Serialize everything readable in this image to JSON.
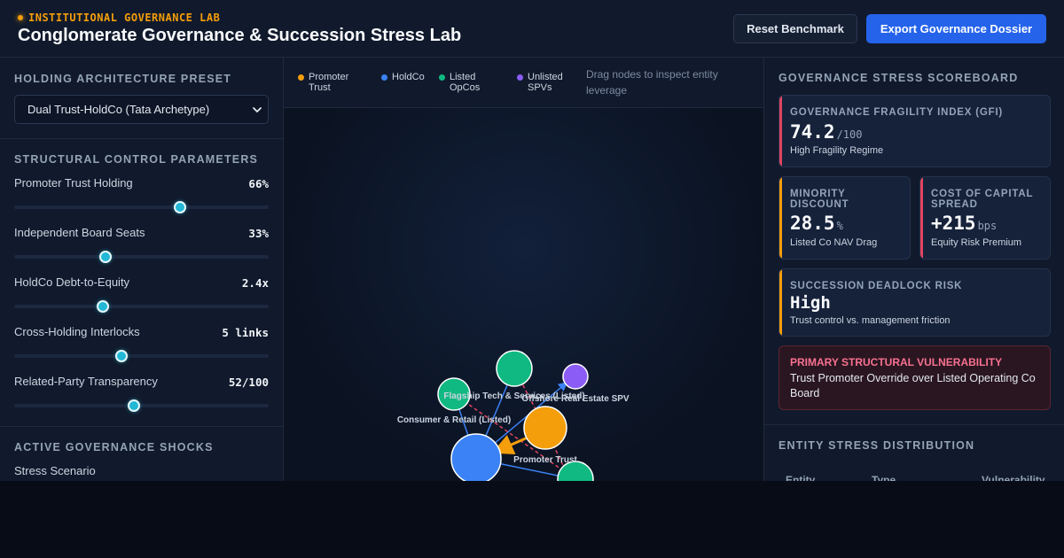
{
  "header": {
    "eyebrow": "INSTITUTIONAL GOVERNANCE LAB",
    "title": "Conglomerate Governance & Succession Stress Lab",
    "reset_label": "Reset Benchmark",
    "export_label": "Export Governance Dossier",
    "accent_color": "#f59e0b",
    "primary_color": "#2563eb"
  },
  "left": {
    "preset_heading": "HOLDING ARCHITECTURE PRESET",
    "preset_value": "Dual Trust-HoldCo (Tata Archetype)",
    "params_heading": "STRUCTURAL CONTROL PARAMETERS",
    "params": [
      {
        "label": "Promoter Trust Holding",
        "value": "66%",
        "level": 0.65
      },
      {
        "label": "Independent Board Seats",
        "value": "33%",
        "level": 0.36
      },
      {
        "label": "HoldCo Debt-to-Equity",
        "value": "2.4x",
        "level": 0.35
      },
      {
        "label": "Cross-Holding Interlocks",
        "value": "5 links",
        "level": 0.42
      },
      {
        "label": "Related-Party Transparency",
        "value": "52/100",
        "level": 0.47
      }
    ],
    "shocks_heading": "ACTIVE GOVERNANCE SHOCKS",
    "stress_scenario_label": "Stress Scenario"
  },
  "center": {
    "legend": [
      {
        "label": "Promoter Trust",
        "color": "#f59e0b"
      },
      {
        "label": "HoldCo",
        "color": "#3b82f6"
      },
      {
        "label": "Listed OpCos",
        "color": "#10b981"
      },
      {
        "label": "Unlisted SPVs",
        "color": "#8b5cf6"
      }
    ],
    "drag_hint": "Drag nodes to inspect entity leverage",
    "node_labels": {
      "tech": "Flagship Tech & Services (Listed)",
      "spv": "Offshore Real Estate SPV",
      "consumer": "Consumer & Retail (Listed)",
      "trust": "Promoter Trust"
    }
  },
  "right": {
    "scoreboard_heading": "GOVERNANCE STRESS SCOREBOARD",
    "gfi": {
      "label": "GOVERNANCE FRAGILITY INDEX (GFI)",
      "value": "74.2",
      "unit": "/100",
      "desc": "High Fragility Regime",
      "color": "#e0445f"
    },
    "minority": {
      "label": "MINORITY DISCOUNT",
      "value": "28.5",
      "unit": "%",
      "desc": "Listed Co NAV Drag",
      "color": "#f59e0b"
    },
    "capital": {
      "label": "COST OF CAPITAL SPREAD",
      "value": "+215",
      "unit": "bps",
      "desc": "Equity Risk Premium",
      "color": "#e0445f"
    },
    "succession": {
      "label": "SUCCESSION DEADLOCK RISK",
      "value": "High",
      "desc": "Trust control vs. management friction",
      "color": "#f59e0b"
    },
    "vulnerability": {
      "title": "PRIMARY STRUCTURAL VULNERABILITY",
      "body": "Trust Promoter Override over Listed Operating Co Board"
    },
    "distribution_heading": "ENTITY STRESS DISTRIBUTION",
    "table_headers": [
      "Entity",
      "Type",
      "Vulnerability"
    ]
  }
}
